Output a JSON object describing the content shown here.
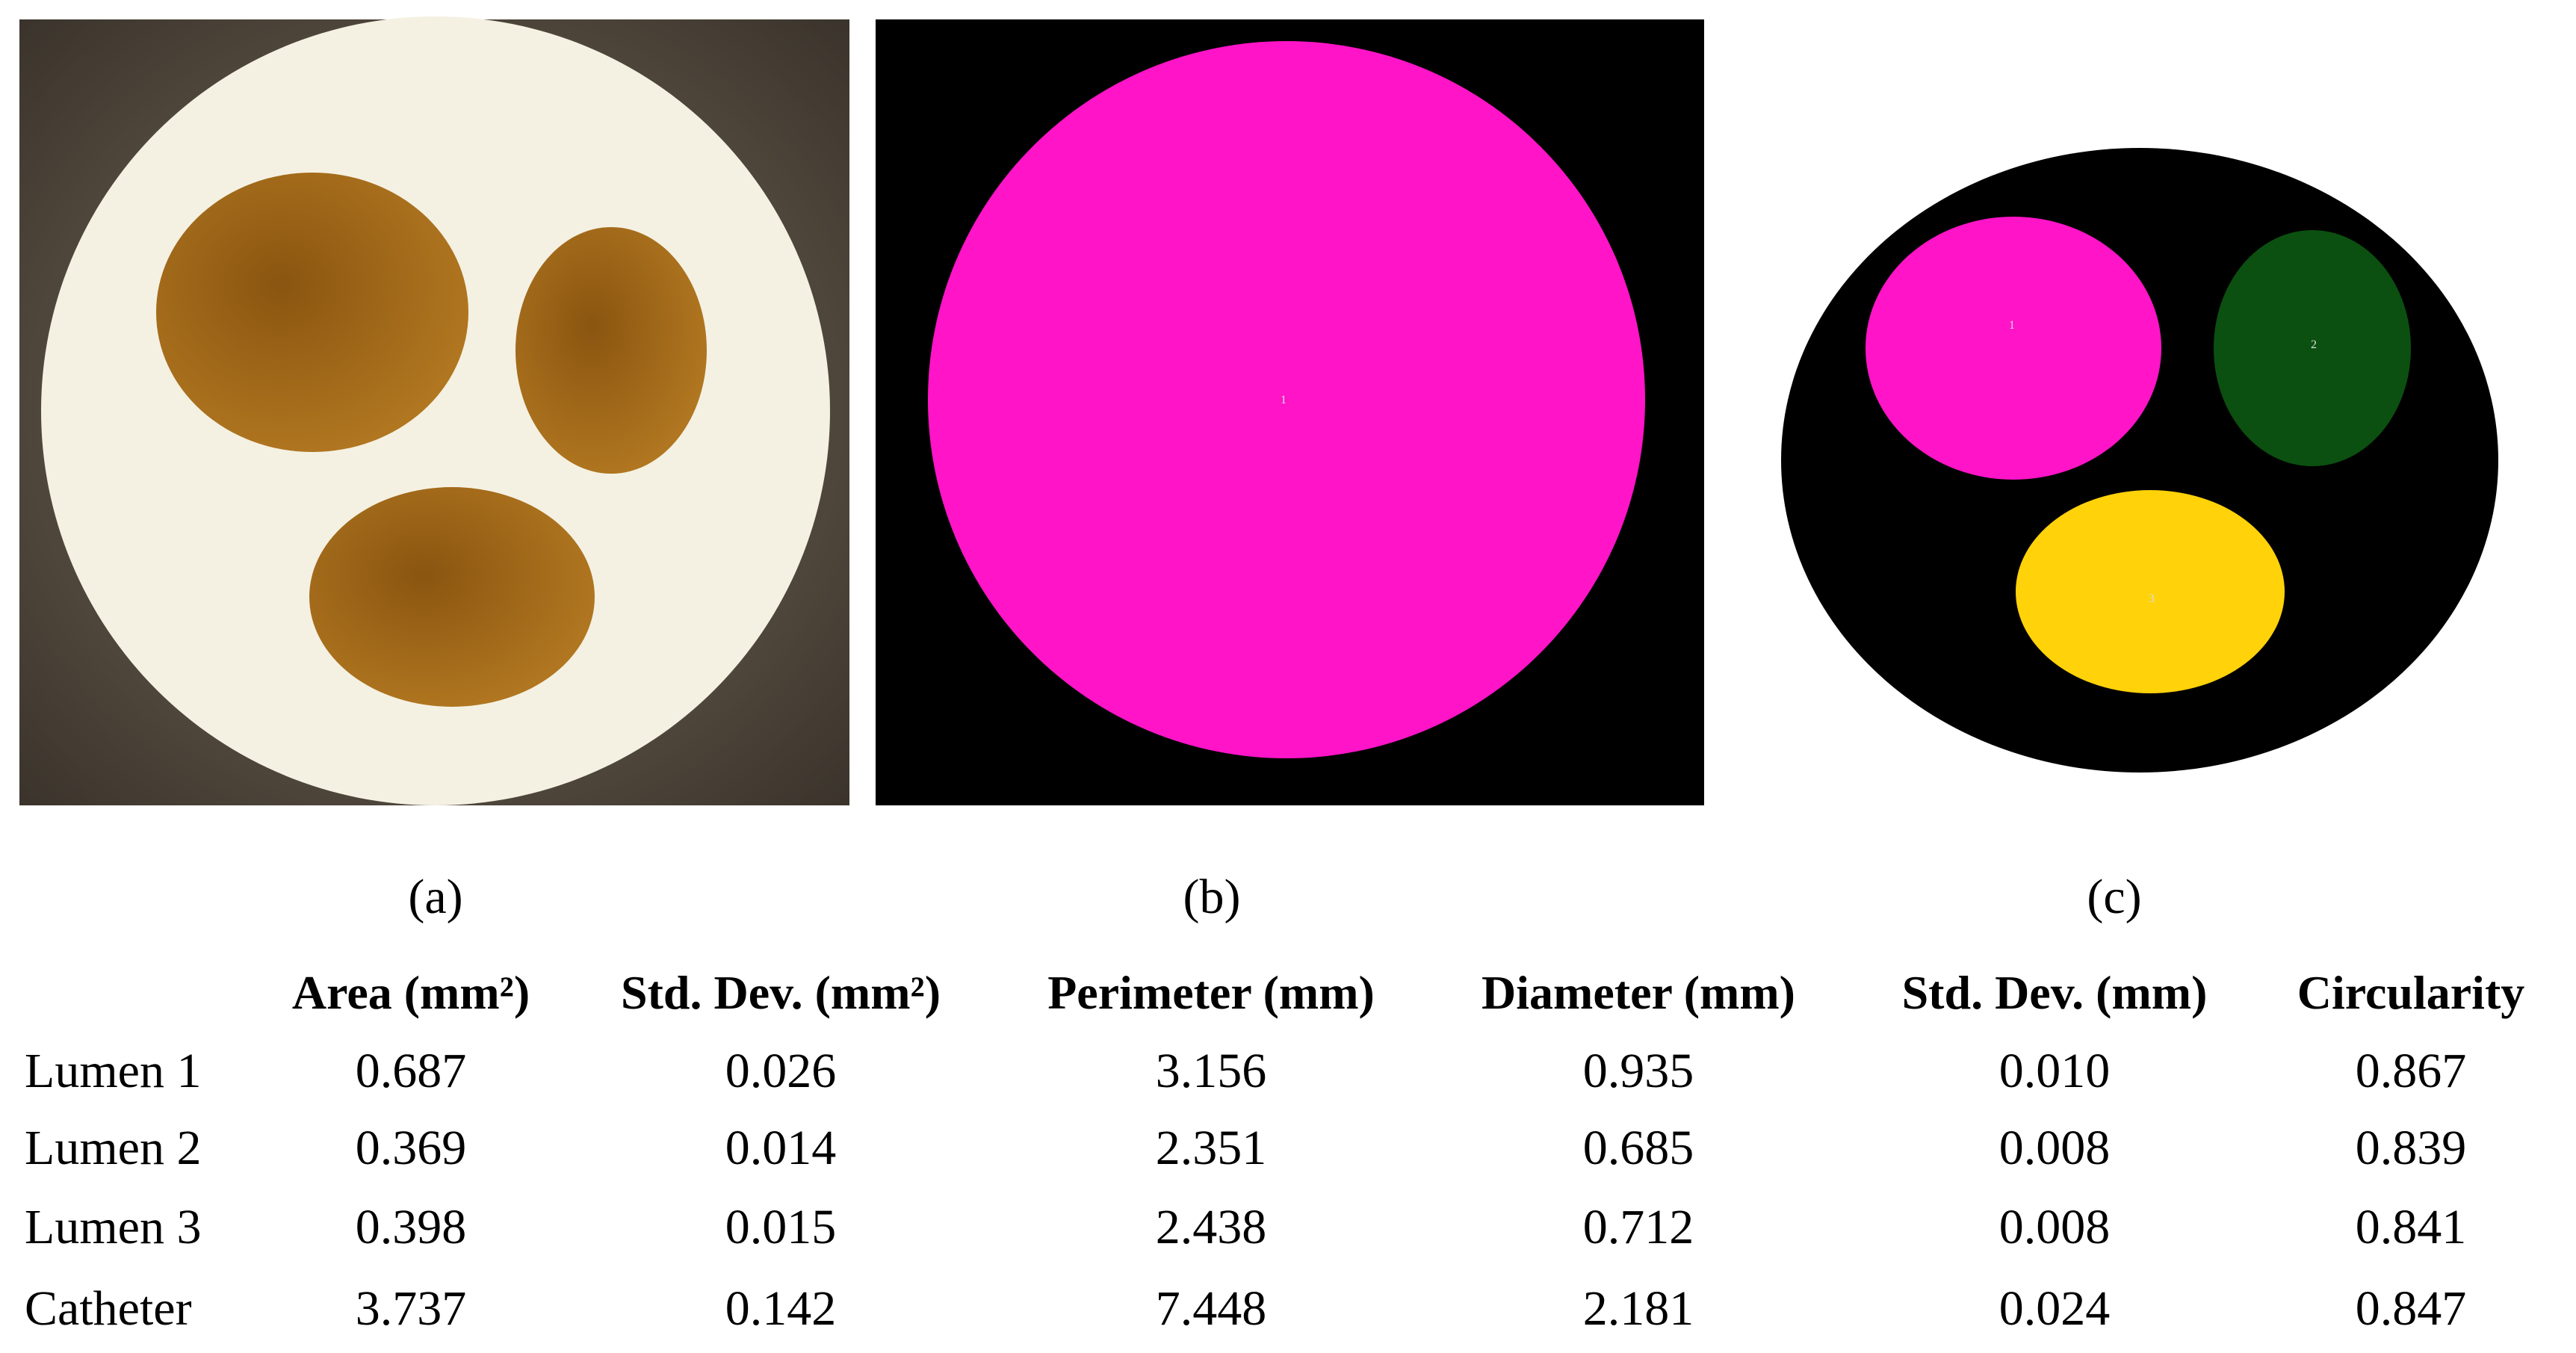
{
  "panels": [
    {
      "label": "(a)"
    },
    {
      "label": "(b)",
      "segments": [
        "1"
      ]
    },
    {
      "label": "(c)",
      "segments": [
        "1",
        "2",
        "3"
      ]
    }
  ],
  "table": {
    "header": [
      "Area (mm²)",
      "Std. Dev. (mm²)",
      "Perimeter (mm)",
      "Diameter (mm)",
      "Std. Dev. (mm)",
      "Circularity"
    ],
    "rows": [
      [
        "Lumen 1",
        "0.687",
        "0.026",
        "3.156",
        "0.935",
        "0.010",
        "0.867"
      ],
      [
        "Lumen 2",
        "0.369",
        "0.014",
        "2.351",
        "0.685",
        "0.008",
        "0.839"
      ],
      [
        "Lumen 3",
        "0.398",
        "0.015",
        "2.438",
        "0.712",
        "0.008",
        "0.841"
      ],
      [
        "Catheter",
        "3.737",
        "0.142",
        "7.448",
        "2.181",
        "0.024",
        "0.847"
      ]
    ]
  }
}
